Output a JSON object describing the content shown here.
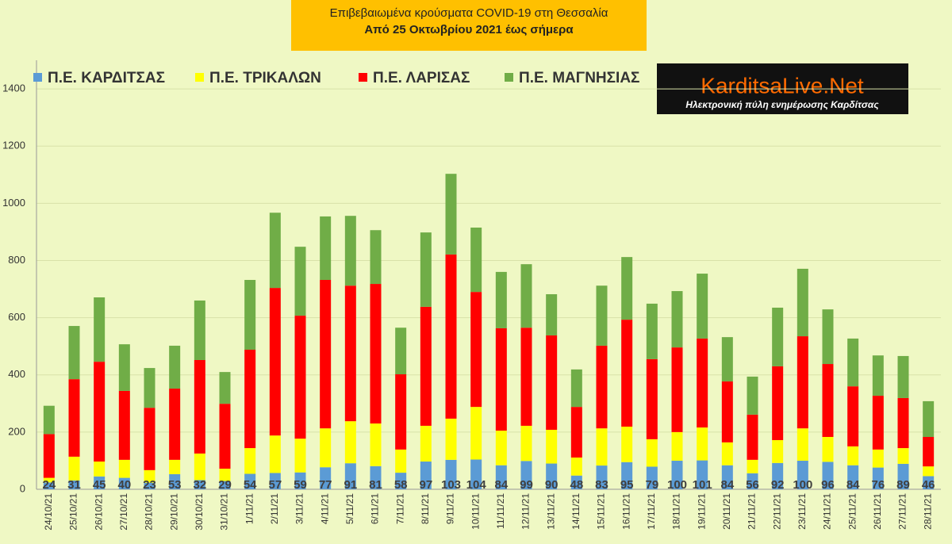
{
  "chart_data": {
    "type": "stacked-bar",
    "title": "Επιβεβαιωμένα κρούσματα COVID-19 στη Θεσσαλία",
    "subtitle": "Από 25 Οκτωβρίου 2021 έως σήμερα",
    "logo": {
      "name": "KarditsaLive.Net",
      "tagline": "Ηλεκτρονική πύλη ενημέρωσης Καρδίτσας"
    },
    "categories": [
      "24/10/21",
      "25/10/21",
      "26/10/21",
      "27/10/21",
      "28/10/21",
      "29/10/21",
      "30/10/21",
      "31/10/21",
      "1/11/21",
      "2/11/21",
      "3/11/21",
      "4/11/21",
      "5/11/21",
      "6/11/21",
      "7/11/21",
      "8/11/21",
      "9/11/21",
      "10/11/21",
      "11/11/21",
      "12/11/21",
      "13/11/21",
      "14/11/21",
      "15/11/21",
      "16/11/21",
      "17/11/21",
      "18/11/21",
      "19/11/21",
      "20/11/21",
      "21/11/21",
      "22/11/21",
      "23/11/21",
      "24/11/21",
      "25/11/21",
      "26/11/21",
      "27/11/21",
      "28/11/21"
    ],
    "series": [
      {
        "name": "Π.Ε. ΚΑΡΔΙΤΣΑΣ",
        "color": "#5b9bd5",
        "labeled": true,
        "values": [
          24,
          31,
          45,
          40,
          23,
          53,
          32,
          29,
          54,
          57,
          59,
          77,
          91,
          81,
          58,
          97,
          103,
          104,
          84,
          99,
          90,
          48,
          83,
          95,
          79,
          100,
          101,
          84,
          56,
          92,
          100,
          96,
          84,
          76,
          89,
          46
        ]
      },
      {
        "name": "Π.Ε. ΤΡΙΚΑΛΩΝ",
        "color": "#ffff00",
        "values": [
          16,
          83,
          52,
          63,
          44,
          50,
          93,
          43,
          90,
          131,
          118,
          136,
          147,
          149,
          81,
          125,
          144,
          184,
          121,
          123,
          118,
          63,
          130,
          124,
          96,
          100,
          115,
          80,
          47,
          80,
          113,
          87,
          66,
          63,
          55,
          34
        ]
      },
      {
        "name": "Π.Ε. ΛΑΡΙΣΑΣ",
        "color": "#ff0000",
        "values": [
          153,
          271,
          349,
          241,
          218,
          249,
          327,
          227,
          344,
          516,
          430,
          519,
          474,
          488,
          263,
          416,
          574,
          402,
          358,
          343,
          330,
          177,
          289,
          374,
          280,
          296,
          311,
          213,
          158,
          258,
          322,
          255,
          210,
          188,
          175,
          103
        ]
      },
      {
        "name": "Π.Ε. ΜΑΓΝΗΣΙΑΣ",
        "color": "#70ad47",
        "values": [
          99,
          186,
          225,
          163,
          139,
          150,
          208,
          111,
          244,
          263,
          241,
          222,
          244,
          188,
          163,
          260,
          282,
          225,
          197,
          222,
          144,
          131,
          210,
          219,
          194,
          197,
          227,
          155,
          133,
          205,
          236,
          191,
          167,
          141,
          147,
          125
        ]
      }
    ],
    "ylim": [
      0,
      1500
    ],
    "yticks": [
      0,
      200,
      400,
      600,
      800,
      1000,
      1200,
      1400
    ],
    "grid": true
  }
}
